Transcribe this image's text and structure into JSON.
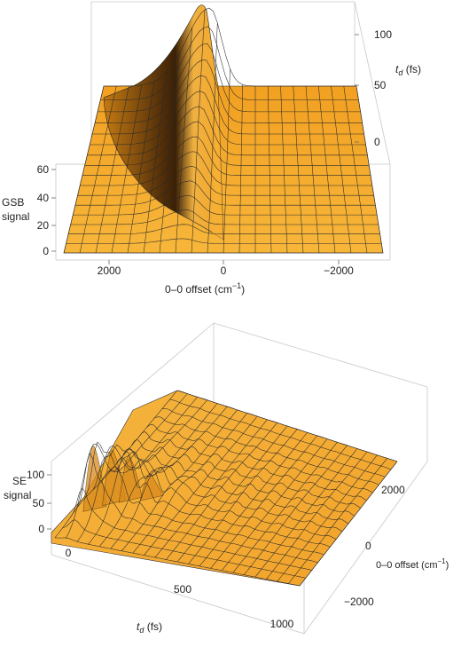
{
  "chart_data": [
    {
      "type": "surface3d",
      "zlabel_line1": "GSB",
      "zlabel_line2": "signal",
      "xlabel_text": "0–0 offset (cm",
      "xlabel_sup": "−1",
      "xlabel_close": ")",
      "ylabel_main": "t",
      "ylabel_sub": "d",
      "ylabel_unit": " (fs)",
      "x_ticks": [
        "2000",
        "0",
        "−2000"
      ],
      "y_ticks": [
        "0",
        "50",
        "100"
      ],
      "z_ticks": [
        "0",
        "20",
        "40",
        "60"
      ],
      "xlim": [
        2600,
        -2600
      ],
      "ylim": [
        0,
        120
      ],
      "zlim": [
        0,
        65
      ],
      "peak": {
        "offset": -300,
        "td": 120,
        "value": 64
      },
      "surface_color": "#f6a623"
    },
    {
      "type": "surface3d",
      "zlabel_line1": "SE",
      "zlabel_line2": "signal",
      "xlabel_main": "t",
      "xlabel_sub": "d",
      "xlabel_unit": " (fs)",
      "ylabel_text": "0–0 offset (cm",
      "ylabel_sup": "−1",
      "ylabel_close": ")",
      "x_ticks": [
        "0",
        "500",
        "1000"
      ],
      "y_ticks": [
        "2000",
        "0",
        "−2000"
      ],
      "z_ticks": [
        "0",
        "50",
        "100"
      ],
      "xlim": [
        0,
        1000
      ],
      "ylim": [
        2600,
        -2600
      ],
      "zlim": [
        0,
        130
      ],
      "peak": {
        "offset": 1800,
        "td": 40,
        "value": 120
      },
      "surface_color": "#f6a623"
    }
  ]
}
